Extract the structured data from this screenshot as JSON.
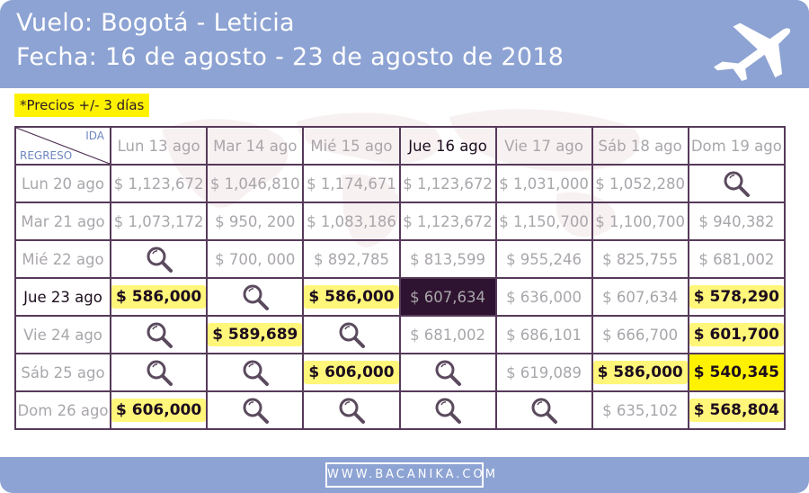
{
  "header": {
    "title": "Vuelo: Bogotá - Leticia",
    "date": "Fecha: 16 de agosto - 23 de agosto de 2018",
    "icon": "airplane-icon"
  },
  "note": "*Precios +/- 3 días",
  "table": {
    "corner": {
      "ida": "IDA",
      "regreso": "REGRESO"
    },
    "columns": [
      "Lun 13 ago",
      "Mar 14 ago",
      "Mié 15 ago",
      "Jue 16 ago",
      "Vie 17 ago",
      "Sáb 18 ago",
      "Dom 19 ago"
    ],
    "rows": [
      {
        "label": "Lun 20 ago",
        "cells": [
          "$ 1,123,672",
          "$ 1,046,810",
          "$ 1,174,671",
          "$ 1,123,672",
          "$ 1,031,000",
          "$ 1,052,280",
          ""
        ]
      },
      {
        "label": "Mar 21 ago",
        "cells": [
          "$ 1,073,172",
          "$ 950, 200",
          "$ 1,083,186",
          "$ 1,123,672",
          "$ 1,150,700",
          "$ 1,100,700",
          "$ 940,382"
        ]
      },
      {
        "label": "Mié 22 ago",
        "cells": [
          "",
          "$ 700, 000",
          "$ 892,785",
          "$ 813,599",
          "$ 955,246",
          "$ 825,755",
          "$ 681,002"
        ]
      },
      {
        "label": "Jue 23 ago",
        "cells": [
          "$ 586,000",
          "",
          "$ 586,000",
          "$ 607,634",
          "$ 636,000",
          "$ 607,634",
          "$ 578,290"
        ]
      },
      {
        "label": "Vie 24 ago",
        "cells": [
          "",
          "$ 589,689",
          "",
          "$ 681,002",
          "$ 686,101",
          "$ 666,700",
          "$ 601,700"
        ]
      },
      {
        "label": "Sáb 25 ago",
        "cells": [
          "",
          "",
          "$ 606,000",
          "",
          "$ 619,089",
          "$ 586,000",
          "$ 540,345"
        ]
      },
      {
        "label": "Dom 26 ago",
        "cells": [
          "$ 606,000",
          "",
          "",
          "",
          "",
          "$ 635,102",
          "$ 568,804"
        ]
      }
    ],
    "highlighted_column": "Jue 16 ago",
    "highlighted_row": "Jue 23 ago",
    "empty_cell_icon": "magnifier-icon"
  },
  "colors": {
    "header_bg": "#8da3d3",
    "highlight": "#fff200",
    "selected_cell": "#2e1430",
    "grid_border": "#563a5a"
  },
  "footer": {
    "site": "WWW.BACANIKA.COM"
  }
}
